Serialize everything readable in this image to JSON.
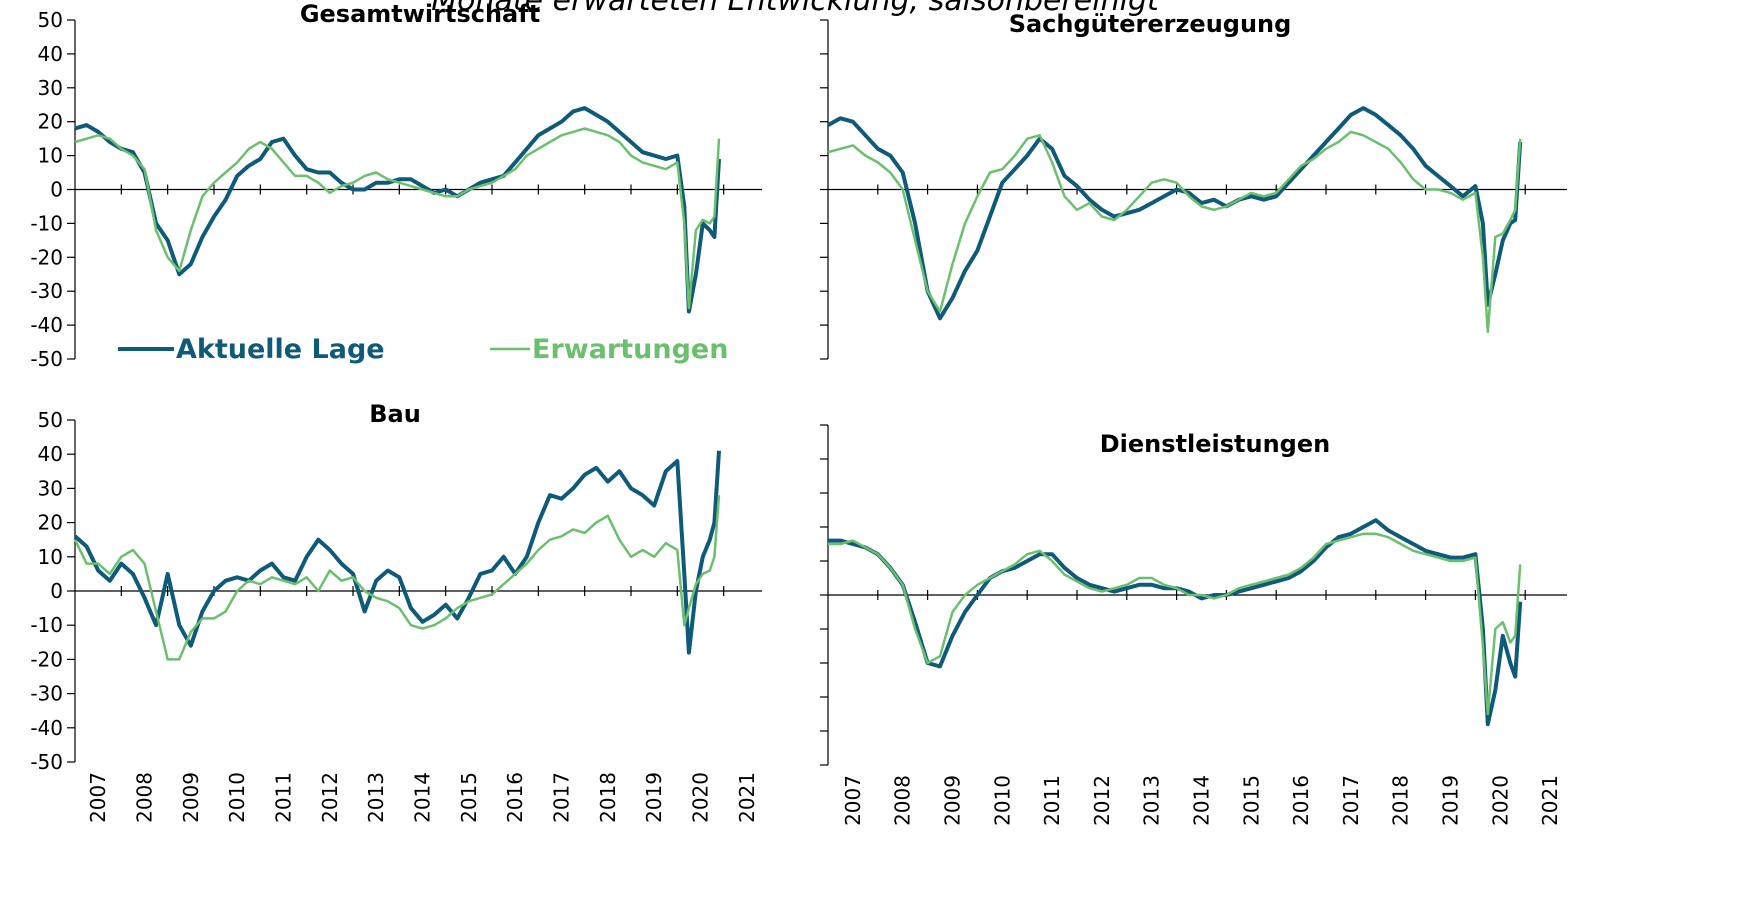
{
  "suptitle": "Monate erwarteten Entwicklung, saisonbereinigt",
  "chart_data": [
    {
      "type": "line",
      "title": "Gesamtwirtschaft",
      "legend": "lower center",
      "ytick_labels": true,
      "xtick_labels": false,
      "xlim": [
        2007,
        2022
      ],
      "xticks": [
        2007,
        2008,
        2009,
        2010,
        2011,
        2012,
        2013,
        2014,
        2015,
        2016,
        2017,
        2018,
        2019,
        2020,
        2021
      ],
      "ylim": [
        -50,
        50
      ],
      "yticks": [
        -50,
        -40,
        -30,
        -20,
        -10,
        0,
        10,
        20,
        30,
        40,
        50
      ],
      "x": [
        2007,
        2007.25,
        2007.5,
        2007.75,
        2008,
        2008.25,
        2008.5,
        2008.75,
        2009,
        2009.25,
        2009.5,
        2009.75,
        2010,
        2010.25,
        2010.5,
        2010.75,
        2011,
        2011.25,
        2011.5,
        2011.75,
        2012,
        2012.25,
        2012.5,
        2012.75,
        2013,
        2013.25,
        2013.5,
        2013.75,
        2014,
        2014.25,
        2014.5,
        2014.75,
        2015,
        2015.25,
        2015.5,
        2015.75,
        2016,
        2016.25,
        2016.5,
        2016.75,
        2017,
        2017.25,
        2017.5,
        2017.75,
        2018,
        2018.25,
        2018.5,
        2018.75,
        2019,
        2019.25,
        2019.5,
        2019.75,
        2020,
        2020.15,
        2020.25,
        2020.4,
        2020.55,
        2020.7,
        2020.8,
        2020.9
      ],
      "series": [
        {
          "name": "Aktuelle Lage",
          "color": "#0e5a78",
          "values": [
            18,
            19,
            17,
            14,
            12,
            11,
            5,
            -10,
            -15,
            -25,
            -22,
            -14,
            -8,
            -3,
            4,
            7,
            9,
            14,
            15,
            10,
            6,
            5,
            5,
            2,
            0,
            0,
            2,
            2,
            3,
            3,
            1,
            -1,
            0,
            -2,
            0,
            2,
            3,
            4,
            8,
            12,
            16,
            18,
            20,
            23,
            24,
            22,
            20,
            17,
            14,
            11,
            10,
            9,
            10,
            -5,
            -36,
            -25,
            -10,
            -12,
            -14,
            9
          ]
        },
        {
          "name": "Erwartungen",
          "color": "#6cbf6e",
          "values": [
            14,
            15,
            16,
            15,
            12,
            10,
            6,
            -12,
            -20,
            -24,
            -12,
            -2,
            2,
            5,
            8,
            12,
            14,
            12,
            8,
            4,
            4,
            2,
            -1,
            1,
            2,
            4,
            5,
            3,
            2,
            1,
            0,
            -1,
            -2,
            -2,
            0,
            1,
            2,
            4,
            6,
            10,
            12,
            14,
            16,
            17,
            18,
            17,
            16,
            14,
            10,
            8,
            7,
            6,
            8,
            -10,
            -35,
            -12,
            -9,
            -10,
            -8,
            15
          ]
        }
      ]
    },
    {
      "type": "line",
      "title": "Sachgütererzeugung",
      "ytick_labels": false,
      "xtick_labels": false,
      "xlim": [
        2007,
        2022
      ],
      "xticks": [
        2007,
        2008,
        2009,
        2010,
        2011,
        2012,
        2013,
        2014,
        2015,
        2016,
        2017,
        2018,
        2019,
        2020,
        2021
      ],
      "ylim": [
        -50,
        50
      ],
      "yticks": [
        -50,
        -40,
        -30,
        -20,
        -10,
        0,
        10,
        20,
        30,
        40,
        50
      ],
      "x": [
        2007,
        2007.25,
        2007.5,
        2007.75,
        2008,
        2008.25,
        2008.5,
        2008.75,
        2009,
        2009.25,
        2009.5,
        2009.75,
        2010,
        2010.25,
        2010.5,
        2010.75,
        2011,
        2011.25,
        2011.5,
        2011.75,
        2012,
        2012.25,
        2012.5,
        2012.75,
        2013,
        2013.25,
        2013.5,
        2013.75,
        2014,
        2014.25,
        2014.5,
        2014.75,
        2015,
        2015.25,
        2015.5,
        2015.75,
        2016,
        2016.25,
        2016.5,
        2016.75,
        2017,
        2017.25,
        2017.5,
        2017.75,
        2018,
        2018.25,
        2018.5,
        2018.75,
        2019,
        2019.25,
        2019.5,
        2019.75,
        2020,
        2020.15,
        2020.25,
        2020.4,
        2020.55,
        2020.7,
        2020.8,
        2020.9
      ],
      "series": [
        {
          "color": "#0e5a78",
          "values": [
            19,
            21,
            20,
            16,
            12,
            10,
            5,
            -10,
            -30,
            -38,
            -32,
            -24,
            -18,
            -8,
            2,
            6,
            10,
            15,
            12,
            4,
            1,
            -3,
            -6,
            -8,
            -7,
            -6,
            -4,
            -2,
            0,
            -1,
            -4,
            -3,
            -5,
            -3,
            -2,
            -3,
            -2,
            2,
            6,
            10,
            14,
            18,
            22,
            24,
            22,
            19,
            16,
            12,
            7,
            4,
            1,
            -2,
            1,
            -10,
            -34,
            -25,
            -15,
            -10,
            -9,
            14
          ]
        },
        {
          "color": "#6cbf6e",
          "values": [
            11,
            12,
            13,
            10,
            8,
            5,
            0,
            -15,
            -30,
            -36,
            -22,
            -10,
            -2,
            5,
            6,
            10,
            15,
            16,
            8,
            -2,
            -6,
            -4,
            -8,
            -9,
            -6,
            -2,
            2,
            3,
            2,
            -2,
            -5,
            -6,
            -5,
            -3,
            -1,
            -2,
            -1,
            3,
            7,
            9,
            12,
            14,
            17,
            16,
            14,
            12,
            8,
            3,
            0,
            0,
            -1,
            -3,
            -1,
            -20,
            -42,
            -14,
            -13,
            -9,
            -6,
            15
          ]
        }
      ]
    },
    {
      "type": "line",
      "title": "Bau",
      "ytick_labels": true,
      "xtick_labels": true,
      "xlim": [
        2007,
        2022
      ],
      "xticks": [
        2007,
        2008,
        2009,
        2010,
        2011,
        2012,
        2013,
        2014,
        2015,
        2016,
        2017,
        2018,
        2019,
        2020,
        2021
      ],
      "ylim": [
        -50,
        50
      ],
      "yticks": [
        -50,
        -40,
        -30,
        -20,
        -10,
        0,
        10,
        20,
        30,
        40,
        50
      ],
      "x": [
        2007,
        2007.25,
        2007.5,
        2007.75,
        2008,
        2008.25,
        2008.5,
        2008.75,
        2009,
        2009.25,
        2009.5,
        2009.75,
        2010,
        2010.25,
        2010.5,
        2010.75,
        2011,
        2011.25,
        2011.5,
        2011.75,
        2012,
        2012.25,
        2012.5,
        2012.75,
        2013,
        2013.25,
        2013.5,
        2013.75,
        2014,
        2014.25,
        2014.5,
        2014.75,
        2015,
        2015.25,
        2015.5,
        2015.75,
        2016,
        2016.25,
        2016.5,
        2016.75,
        2017,
        2017.25,
        2017.5,
        2017.75,
        2018,
        2018.25,
        2018.5,
        2018.75,
        2019,
        2019.25,
        2019.5,
        2019.75,
        2020,
        2020.15,
        2020.25,
        2020.4,
        2020.55,
        2020.7,
        2020.8,
        2020.9
      ],
      "series": [
        {
          "color": "#0e5a78",
          "values": [
            16,
            13,
            6,
            3,
            8,
            5,
            -2,
            -10,
            5,
            -10,
            -16,
            -6,
            0,
            3,
            4,
            3,
            6,
            8,
            4,
            3,
            10,
            15,
            12,
            8,
            5,
            -6,
            3,
            6,
            4,
            -5,
            -9,
            -7,
            -4,
            -8,
            -2,
            5,
            6,
            10,
            5,
            10,
            20,
            28,
            27,
            30,
            34,
            36,
            32,
            35,
            30,
            28,
            25,
            35,
            38,
            5,
            -18,
            0,
            10,
            15,
            20,
            41
          ]
        },
        {
          "color": "#6cbf6e",
          "values": [
            15,
            8,
            8,
            5,
            10,
            12,
            8,
            -6,
            -20,
            -20,
            -12,
            -8,
            -8,
            -6,
            0,
            3,
            2,
            4,
            3,
            2,
            4,
            0,
            6,
            3,
            4,
            0,
            -2,
            -3,
            -5,
            -10,
            -11,
            -10,
            -8,
            -5,
            -3,
            -2,
            -1,
            2,
            5,
            8,
            12,
            15,
            16,
            18,
            17,
            20,
            22,
            15,
            10,
            12,
            10,
            14,
            12,
            -10,
            -5,
            2,
            5,
            6,
            10,
            28
          ]
        }
      ]
    },
    {
      "type": "line",
      "title": "Dienstleistungen",
      "ytick_labels": false,
      "xtick_labels": true,
      "xlim": [
        2007,
        2022
      ],
      "xticks": [
        2007,
        2008,
        2009,
        2010,
        2011,
        2012,
        2013,
        2014,
        2015,
        2016,
        2017,
        2018,
        2019,
        2020,
        2021
      ],
      "ylim": [
        -50,
        50
      ],
      "yticks": [
        -50,
        -40,
        -30,
        -20,
        -10,
        0,
        10,
        20,
        30,
        40,
        50
      ],
      "x": [
        2007,
        2007.25,
        2007.5,
        2007.75,
        2008,
        2008.25,
        2008.5,
        2008.75,
        2009,
        2009.25,
        2009.5,
        2009.75,
        2010,
        2010.25,
        2010.5,
        2010.75,
        2011,
        2011.25,
        2011.5,
        2011.75,
        2012,
        2012.25,
        2012.5,
        2012.75,
        2013,
        2013.25,
        2013.5,
        2013.75,
        2014,
        2014.25,
        2014.5,
        2014.75,
        2015,
        2015.25,
        2015.5,
        2015.75,
        2016,
        2016.25,
        2016.5,
        2016.75,
        2017,
        2017.25,
        2017.5,
        2017.75,
        2018,
        2018.25,
        2018.5,
        2018.75,
        2019,
        2019.25,
        2019.5,
        2019.75,
        2020,
        2020.15,
        2020.25,
        2020.4,
        2020.55,
        2020.7,
        2020.8,
        2020.9
      ],
      "series": [
        {
          "color": "#0e5a78",
          "values": [
            16,
            16,
            15,
            14,
            12,
            8,
            3,
            -8,
            -20,
            -21,
            -12,
            -5,
            0,
            5,
            7,
            8,
            10,
            12,
            12,
            8,
            5,
            3,
            2,
            1,
            2,
            3,
            3,
            2,
            2,
            1,
            -1,
            0,
            0,
            1,
            2,
            3,
            4,
            5,
            7,
            10,
            14,
            17,
            18,
            20,
            22,
            19,
            17,
            15,
            13,
            12,
            11,
            11,
            12,
            -10,
            -38,
            -28,
            -12,
            -20,
            -24,
            -2
          ]
        },
        {
          "color": "#6cbf6e",
          "values": [
            15,
            15,
            16,
            14,
            12,
            8,
            3,
            -10,
            -20,
            -18,
            -5,
            0,
            3,
            5,
            7,
            9,
            12,
            13,
            10,
            6,
            4,
            2,
            1,
            2,
            3,
            5,
            5,
            3,
            2,
            0,
            0,
            -1,
            0,
            2,
            3,
            4,
            5,
            6,
            8,
            11,
            15,
            16,
            17,
            18,
            18,
            17,
            15,
            13,
            12,
            11,
            10,
            10,
            11,
            -15,
            -35,
            -10,
            -8,
            -14,
            -12,
            9
          ]
        }
      ]
    }
  ]
}
